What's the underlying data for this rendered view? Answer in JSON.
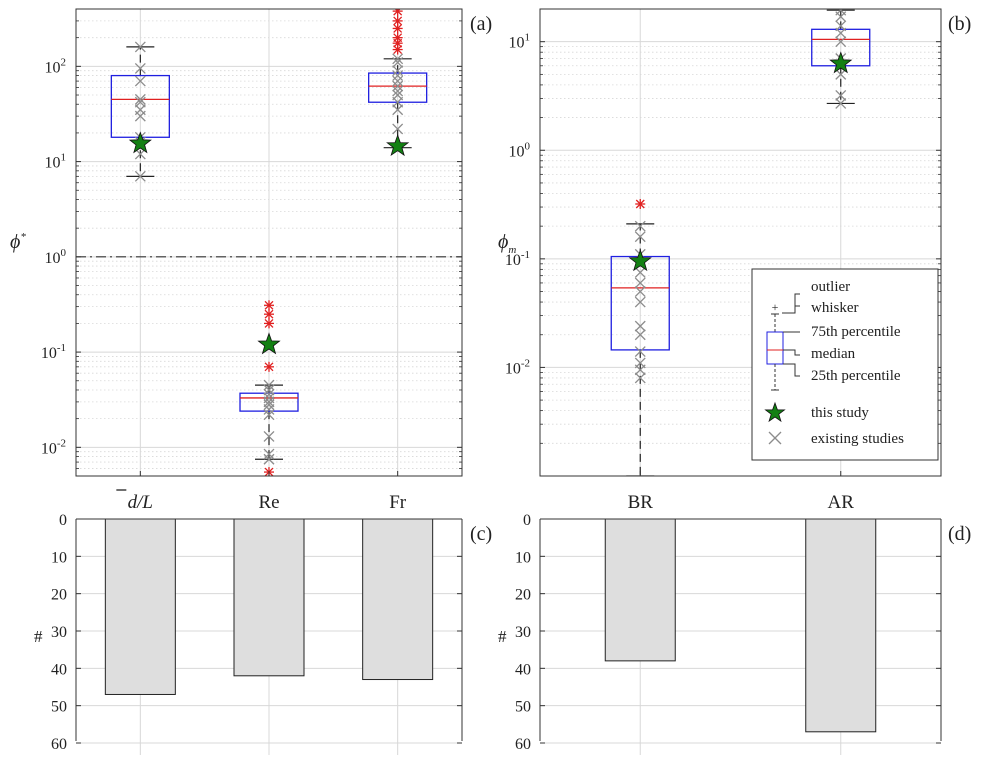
{
  "chart_data": [
    {
      "panel": "(a)",
      "type": "box",
      "scale": "log",
      "ylabel": "ϕ*",
      "ylim": [
        0.005,
        400
      ],
      "ticks": [
        "10^-2",
        "10^-1",
        "10^0",
        "10^1",
        "10^2"
      ],
      "categories": [
        "d/L",
        "Re",
        "Fr"
      ],
      "reference_line": 1,
      "boxes": [
        {
          "category": "d/L",
          "q1": 18,
          "median": 45,
          "q3": 80,
          "whisker_low": 7,
          "whisker_high": 160,
          "outliers": [],
          "this_study": 15.5,
          "existing": [
            7,
            12,
            16,
            18,
            30,
            35,
            42,
            45,
            70,
            95,
            160
          ]
        },
        {
          "category": "Re",
          "q1": 0.024,
          "median": 0.033,
          "q3": 0.037,
          "whisker_low": 0.0075,
          "whisker_high": 0.045,
          "outliers": [
            0.0055,
            0.07,
            0.2,
            0.25,
            0.31
          ],
          "this_study": 0.12,
          "existing": [
            0.0075,
            0.0085,
            0.013,
            0.022,
            0.025,
            0.028,
            0.03,
            0.033,
            0.036,
            0.04,
            0.045
          ]
        },
        {
          "category": "Fr",
          "q1": 42,
          "median": 62,
          "q3": 85,
          "whisker_low": 14,
          "whisker_high": 120,
          "outliers": [
            150,
            175,
            200,
            250,
            300,
            380
          ],
          "this_study": 14.5,
          "existing": [
            14,
            22,
            35,
            42,
            50,
            55,
            62,
            70,
            80,
            90,
            110,
            120
          ]
        }
      ]
    },
    {
      "panel": "(b)",
      "type": "box",
      "scale": "log",
      "ylabel": "ϕm",
      "ylim": [
        0.001,
        20
      ],
      "ticks": [
        "10^-2",
        "10^-1",
        "10^0",
        "10^1"
      ],
      "categories": [
        "BR",
        "AR"
      ],
      "boxes": [
        {
          "category": "BR",
          "q1": 0.0145,
          "median": 0.054,
          "q3": 0.105,
          "whisker_low": 0.001,
          "whisker_high": 0.21,
          "outliers": [
            0.32
          ],
          "this_study": 0.095,
          "existing": [
            0.008,
            0.0095,
            0.011,
            0.014,
            0.02,
            0.024,
            0.04,
            0.05,
            0.06,
            0.075,
            0.09,
            0.11,
            0.16,
            0.2
          ]
        },
        {
          "category": "AR",
          "q1": 6,
          "median": 10.5,
          "q3": 13,
          "whisker_low": 2.7,
          "whisker_high": 19.5,
          "outliers": [],
          "this_study": 6.3,
          "existing": [
            2.7,
            3.2,
            5,
            7,
            10,
            12,
            14,
            17,
            19.5
          ]
        }
      ],
      "legend": {
        "placement": "bottom-right",
        "entries": [
          "outlier",
          "whisker",
          "75th percentile",
          "median",
          "25th percentile",
          "this study",
          "existing studies"
        ]
      }
    },
    {
      "panel": "(c)",
      "type": "bar",
      "ylabel": "#",
      "ylim": [
        0,
        60
      ],
      "y_inverted": true,
      "ticks": [
        0,
        10,
        20,
        30,
        40,
        50,
        60
      ],
      "categories": [
        "d/L",
        "Re",
        "Fr"
      ],
      "values": [
        47,
        42,
        43
      ]
    },
    {
      "panel": "(d)",
      "type": "bar",
      "ylabel": "#",
      "ylim": [
        0,
        60
      ],
      "y_inverted": true,
      "ticks": [
        0,
        10,
        20,
        30,
        40,
        50,
        60
      ],
      "categories": [
        "BR",
        "AR"
      ],
      "values": [
        38,
        57
      ]
    }
  ],
  "colors": {
    "box": "#1f1fe0",
    "median": "#e02020",
    "outlier": "#e02020",
    "existing": "#8c8c8c",
    "star": "#138013",
    "bar_fill": "#dedede",
    "grid": "#d8d8d8"
  }
}
